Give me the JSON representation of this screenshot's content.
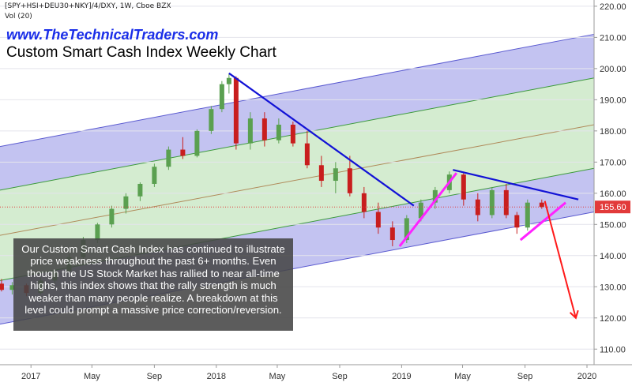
{
  "header": {
    "symbol": "[SPY+HSI+DEU30+NKY]/4/DXY, 1W, Cboe BZX",
    "volume": "Vol (20)",
    "website": "www.TheTechnicalTraders.com",
    "title": "Custom Smart Cash Index Weekly Chart"
  },
  "annotation": "Our Custom Smart Cash Index has continued to illustrate price weakness throughout the past 6+ months.  Even though the US Stock Market has rallied to near all-time highs, this index shows that the rally strength is much weaker than many people realize.  A breakdown at this level could prompt a massive price correction/reversion.",
  "colors": {
    "up": "#5aa050",
    "down": "#c81e1e",
    "outer_channel": "#b9b9ee",
    "inner_channel": "#cde9c8",
    "trendline": "#1212d6",
    "support": "#ff22ff",
    "projection": "#ff1a1a",
    "last_price": "#e23a3a"
  },
  "chart_data": {
    "type": "candlestick",
    "title": "Custom Smart Cash Index Weekly Chart",
    "interval": "1W",
    "y_axis": {
      "ylim": [
        105,
        222
      ],
      "ticks": [
        "110.00",
        "120.00",
        "130.00",
        "140.00",
        "150.00",
        "160.00",
        "170.00",
        "180.00",
        "190.00",
        "200.00",
        "210.00",
        "220.00"
      ]
    },
    "x_axis": {
      "range": [
        "2016-11-01",
        "2020-01-15"
      ],
      "ticks": [
        {
          "date": "2017-01-01",
          "label": "2017"
        },
        {
          "date": "2017-05-01",
          "label": "May"
        },
        {
          "date": "2017-09-01",
          "label": "Sep"
        },
        {
          "date": "2018-01-01",
          "label": "2018"
        },
        {
          "date": "2018-05-01",
          "label": "May"
        },
        {
          "date": "2018-09-01",
          "label": "Sep"
        },
        {
          "date": "2019-01-01",
          "label": "2019"
        },
        {
          "date": "2019-05-01",
          "label": "May"
        },
        {
          "date": "2019-09-01",
          "label": "Sep"
        },
        {
          "date": "2020-01-01",
          "label": "2020"
        }
      ]
    },
    "last_price": {
      "value": 155.6,
      "label": "155.60"
    },
    "ohlc": [
      {
        "date": "2016-11-04",
        "o": 131.0,
        "h": 132.5,
        "l": 128.5,
        "c": 129.0
      },
      {
        "date": "2016-11-25",
        "o": 129.0,
        "h": 131.5,
        "l": 127.5,
        "c": 130.5
      },
      {
        "date": "2016-12-23",
        "o": 130.5,
        "h": 131.0,
        "l": 127.0,
        "c": 128.0
      },
      {
        "date": "2017-01-20",
        "o": 128.0,
        "h": 133.0,
        "l": 127.5,
        "c": 132.0
      },
      {
        "date": "2017-02-17",
        "o": 132.0,
        "h": 135.5,
        "l": 131.0,
        "c": 135.0
      },
      {
        "date": "2017-03-17",
        "o": 135.0,
        "h": 140.5,
        "l": 134.0,
        "c": 139.5
      },
      {
        "date": "2017-04-14",
        "o": 139.5,
        "h": 146.0,
        "l": 138.5,
        "c": 145.0
      },
      {
        "date": "2017-05-12",
        "o": 145.0,
        "h": 150.5,
        "l": 144.0,
        "c": 150.0
      },
      {
        "date": "2017-06-09",
        "o": 150.0,
        "h": 156.0,
        "l": 149.0,
        "c": 155.0
      },
      {
        "date": "2017-07-07",
        "o": 155.0,
        "h": 160.0,
        "l": 153.5,
        "c": 159.0
      },
      {
        "date": "2017-08-04",
        "o": 159.0,
        "h": 163.5,
        "l": 157.5,
        "c": 163.0
      },
      {
        "date": "2017-09-01",
        "o": 163.0,
        "h": 169.5,
        "l": 162.0,
        "c": 168.5
      },
      {
        "date": "2017-09-29",
        "o": 168.5,
        "h": 175.0,
        "l": 167.5,
        "c": 174.0
      },
      {
        "date": "2017-10-27",
        "o": 174.0,
        "h": 178.0,
        "l": 171.0,
        "c": 172.0
      },
      {
        "date": "2017-11-24",
        "o": 172.0,
        "h": 180.5,
        "l": 171.5,
        "c": 180.0
      },
      {
        "date": "2017-12-22",
        "o": 180.0,
        "h": 188.0,
        "l": 179.0,
        "c": 187.0
      },
      {
        "date": "2018-01-12",
        "o": 187.0,
        "h": 196.0,
        "l": 186.0,
        "c": 195.0
      },
      {
        "date": "2018-01-26",
        "o": 195.0,
        "h": 198.5,
        "l": 192.0,
        "c": 197.0
      },
      {
        "date": "2018-02-09",
        "o": 197.0,
        "h": 197.5,
        "l": 174.0,
        "c": 176.0
      },
      {
        "date": "2018-03-09",
        "o": 176.0,
        "h": 186.0,
        "l": 174.0,
        "c": 184.0
      },
      {
        "date": "2018-04-06",
        "o": 184.0,
        "h": 186.0,
        "l": 175.0,
        "c": 177.0
      },
      {
        "date": "2018-05-04",
        "o": 177.0,
        "h": 184.0,
        "l": 176.0,
        "c": 182.0
      },
      {
        "date": "2018-06-01",
        "o": 182.0,
        "h": 183.0,
        "l": 175.0,
        "c": 176.0
      },
      {
        "date": "2018-06-29",
        "o": 176.0,
        "h": 180.0,
        "l": 168.0,
        "c": 169.0
      },
      {
        "date": "2018-07-27",
        "o": 169.0,
        "h": 172.0,
        "l": 162.0,
        "c": 164.0
      },
      {
        "date": "2018-08-24",
        "o": 164.0,
        "h": 170.0,
        "l": 160.0,
        "c": 168.0
      },
      {
        "date": "2018-09-21",
        "o": 168.0,
        "h": 172.0,
        "l": 159.0,
        "c": 160.0
      },
      {
        "date": "2018-10-19",
        "o": 160.0,
        "h": 162.0,
        "l": 152.0,
        "c": 154.0
      },
      {
        "date": "2018-11-16",
        "o": 154.0,
        "h": 157.0,
        "l": 147.0,
        "c": 149.0
      },
      {
        "date": "2018-12-14",
        "o": 149.0,
        "h": 151.0,
        "l": 143.0,
        "c": 145.0
      },
      {
        "date": "2019-01-11",
        "o": 145.0,
        "h": 153.0,
        "l": 144.0,
        "c": 152.0
      },
      {
        "date": "2019-02-08",
        "o": 152.0,
        "h": 158.0,
        "l": 151.0,
        "c": 157.0
      },
      {
        "date": "2019-03-08",
        "o": 157.0,
        "h": 162.0,
        "l": 155.0,
        "c": 161.0
      },
      {
        "date": "2019-04-05",
        "o": 161.0,
        "h": 167.0,
        "l": 160.0,
        "c": 166.0
      },
      {
        "date": "2019-05-03",
        "o": 166.0,
        "h": 166.5,
        "l": 156.0,
        "c": 158.0
      },
      {
        "date": "2019-05-31",
        "o": 158.0,
        "h": 160.0,
        "l": 151.0,
        "c": 153.0
      },
      {
        "date": "2019-06-28",
        "o": 153.0,
        "h": 162.0,
        "l": 152.0,
        "c": 161.0
      },
      {
        "date": "2019-07-26",
        "o": 161.0,
        "h": 163.0,
        "l": 152.0,
        "c": 153.0
      },
      {
        "date": "2019-08-16",
        "o": 153.0,
        "h": 154.0,
        "l": 147.0,
        "c": 149.0
      },
      {
        "date": "2019-09-06",
        "o": 149.0,
        "h": 158.0,
        "l": 148.0,
        "c": 157.0
      },
      {
        "date": "2019-10-04",
        "o": 157.0,
        "h": 158.0,
        "l": 155.0,
        "c": 155.6
      }
    ],
    "regression_channel": {
      "start": "2016-11-01",
      "end": "2020-01-15",
      "upper_outer": [
        175.0,
        211.0
      ],
      "upper_inner": [
        161.0,
        197.0
      ],
      "center": [
        146.5,
        182.0
      ],
      "lower_inner": [
        132.0,
        168.0
      ],
      "lower_outer": [
        118.0,
        154.0
      ]
    },
    "trendlines": [
      {
        "type": "resistance",
        "from": {
          "date": "2018-01-26",
          "value": 198.5
        },
        "to": {
          "date": "2019-01-25",
          "value": 156.0
        }
      },
      {
        "type": "resistance",
        "from": {
          "date": "2019-04-12",
          "value": 167.5
        },
        "to": {
          "date": "2019-12-15",
          "value": 158.0
        }
      },
      {
        "type": "support",
        "from": {
          "date": "2018-12-28",
          "value": 143.0
        },
        "to": {
          "date": "2019-04-19",
          "value": 166.5
        }
      },
      {
        "type": "support",
        "from": {
          "date": "2019-08-23",
          "value": 145.0
        },
        "to": {
          "date": "2019-11-20",
          "value": 157.0
        }
      },
      {
        "type": "projection",
        "from": {
          "date": "2019-10-10",
          "value": 157.5
        },
        "to": {
          "date": "2019-12-10",
          "value": 120.0
        }
      }
    ]
  }
}
